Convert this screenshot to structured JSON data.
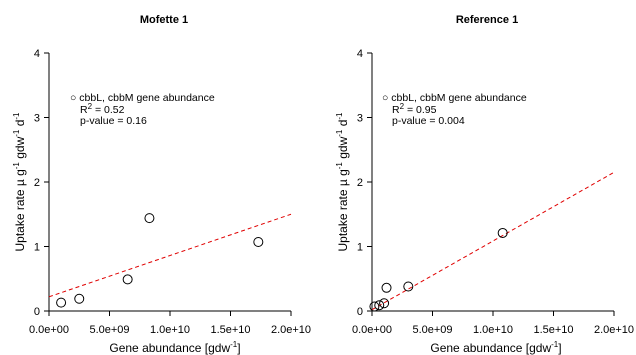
{
  "chart_data": [
    {
      "type": "scatter",
      "title": "Mofette 1",
      "xlabel": {
        "main": "Gene abundance  [gdw",
        "sup": "-1",
        "end": "]"
      },
      "ylabel": {
        "a": "Uptake rate  µ g",
        "sup1": "-1",
        "b": " gdw",
        "sup2": "-1",
        "c": " d",
        "sup3": "-1"
      },
      "xlim": [
        0,
        20000000000.0
      ],
      "ylim": [
        0,
        4
      ],
      "xticks": [
        "0.0e+00",
        "5.0e+09",
        "1.0e+10",
        "1.5e+10",
        "2.0e+10"
      ],
      "xtick_values": [
        0,
        5000000000.0,
        10000000000.0,
        15000000000.0,
        20000000000.0
      ],
      "yticks": [
        "0",
        "1",
        "2",
        "3",
        "4"
      ],
      "ytick_values": [
        0,
        1,
        2,
        3,
        4
      ],
      "legend": {
        "label": "cbbL, cbbM gene abundance",
        "r2_label": "R",
        "r2_sup": "2",
        "r2_value": " = 0.52",
        "p_text": "p-value =  0.16"
      },
      "points": [
        {
          "x": 1000000000.0,
          "y": 0.13
        },
        {
          "x": 2500000000.0,
          "y": 0.19
        },
        {
          "x": 6500000000.0,
          "y": 0.49
        },
        {
          "x": 8300000000.0,
          "y": 1.44
        },
        {
          "x": 17300000000.0,
          "y": 1.07
        }
      ],
      "trendline": {
        "x0": 0,
        "y0": 0.22,
        "x1": 20000000000.0,
        "y1": 1.5,
        "color": "#e00000"
      }
    },
    {
      "type": "scatter",
      "title": "Reference 1",
      "xlabel": {
        "main": "Gene abundance  [gdw",
        "sup": "-1",
        "end": "]"
      },
      "ylabel": {
        "a": "Uptake rate  µ g",
        "sup1": "-1",
        "b": " gdw",
        "sup2": "-1",
        "c": " d",
        "sup3": "-1"
      },
      "xlim": [
        0,
        20000000000.0
      ],
      "ylim": [
        0,
        4
      ],
      "xticks": [
        "0.0e+00",
        "5.0e+09",
        "1.0e+10",
        "1.5e+10",
        "2.0e+10"
      ],
      "xtick_values": [
        0,
        5000000000.0,
        10000000000.0,
        15000000000.0,
        20000000000.0
      ],
      "yticks": [
        "0",
        "1",
        "2",
        "3",
        "4"
      ],
      "ytick_values": [
        0,
        1,
        2,
        3,
        4
      ],
      "legend": {
        "label": "cbbL, cbbM gene abundance",
        "r2_label": "R",
        "r2_sup": "2",
        "r2_value": " = 0.95",
        "p_text": "p-value =  0.004"
      },
      "points": [
        {
          "x": 200000000.0,
          "y": 0.07
        },
        {
          "x": 600000000.0,
          "y": 0.09
        },
        {
          "x": 1000000000.0,
          "y": 0.12
        },
        {
          "x": 1200000000.0,
          "y": 0.36
        },
        {
          "x": 3000000000.0,
          "y": 0.38
        },
        {
          "x": 10800000000.0,
          "y": 1.21
        }
      ],
      "trendline": {
        "x0": 0,
        "y0": 0.02,
        "x1": 20000000000.0,
        "y1": 2.15,
        "color": "#e00000"
      }
    }
  ]
}
